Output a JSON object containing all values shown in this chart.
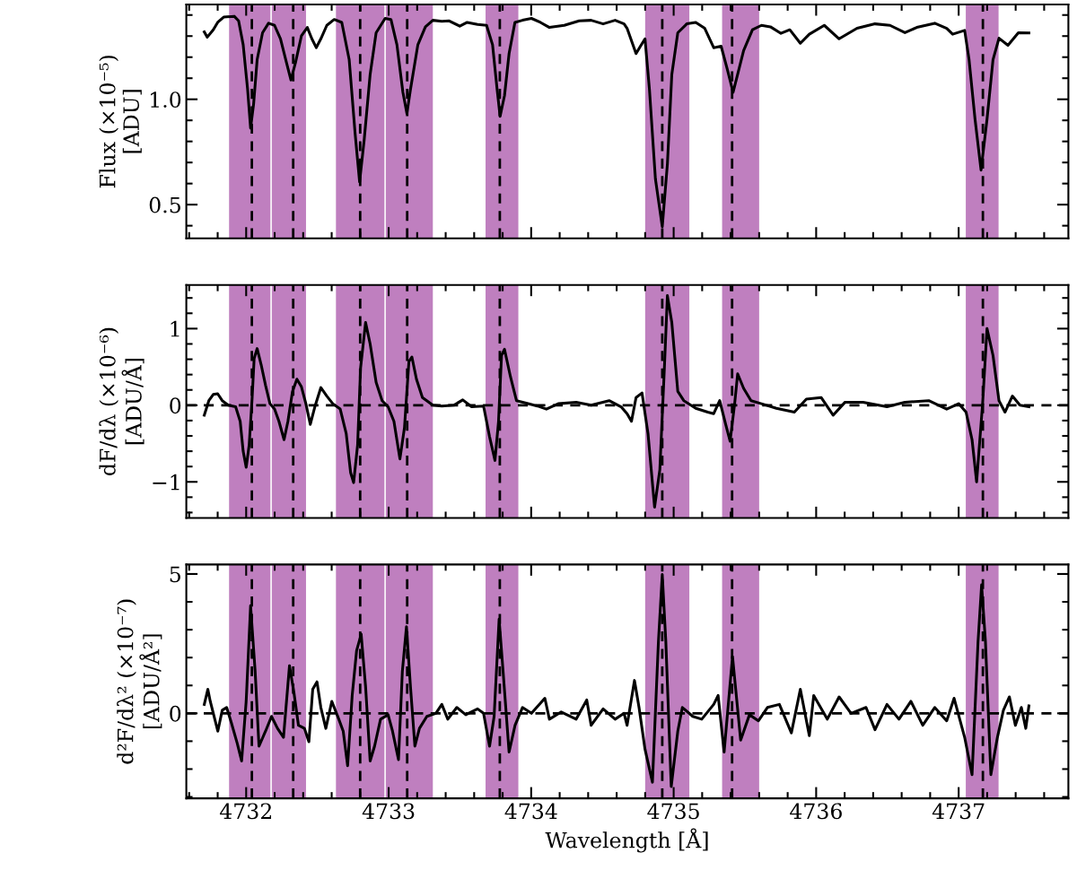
{
  "chart_data": [
    {
      "type": "line",
      "ylabel": "Flux (×10⁻⁵)\n[ADU]",
      "xlim": [
        4731.58,
        4737.77
      ],
      "xticks": [
        4732,
        4733,
        4734,
        4735,
        4736,
        4737
      ],
      "ylim": [
        0.34,
        1.45
      ],
      "yticks": [
        0.5,
        {
          "value": 1,
          "label": "1.0"
        }
      ],
      "tick_labels": "y",
      "series": [
        {
          "color": "#000000",
          "x": [
            4731.706,
            4731.727,
            4731.769,
            4731.8,
            4731.842,
            4731.916,
            4731.947,
            4731.979,
            4732.01,
            4732.031,
            4732.052,
            4732.077,
            4732.115,
            4732.157,
            4732.199,
            4732.241,
            4732.283,
            4732.314,
            4732.346,
            4732.388,
            4732.429,
            4732.461,
            4732.492,
            4732.524,
            4732.566,
            4732.618,
            4732.671,
            4732.723,
            4732.765,
            4732.796,
            4732.828,
            4732.87,
            4732.912,
            4732.975,
            4733.016,
            4733.058,
            4733.1,
            4733.128,
            4733.153,
            4733.205,
            4733.258,
            4733.31,
            4733.373,
            4733.425,
            4733.499,
            4733.551,
            4733.624,
            4733.687,
            4733.729,
            4733.761,
            4733.782,
            4733.813,
            4733.845,
            4733.886,
            4733.939,
            4734.002,
            4734.065,
            4734.128,
            4734.232,
            4734.337,
            4734.421,
            4734.505,
            4734.589,
            4734.652,
            4734.673,
            4734.736,
            4734.767,
            4734.799,
            4734.83,
            4734.872,
            4734.92,
            4734.956,
            4734.987,
            4735.029,
            4735.092,
            4735.155,
            4735.218,
            4735.281,
            4735.333,
            4735.375,
            4735.417,
            4735.449,
            4735.491,
            4735.553,
            4735.616,
            4735.679,
            4735.753,
            4735.815,
            4735.889,
            4735.952,
            4736.057,
            4736.161,
            4736.287,
            4736.413,
            4736.518,
            4736.623,
            4736.706,
            4736.832,
            4736.916,
            4736.958,
            4737.042,
            4737.073,
            4737.115,
            4737.157,
            4737.199,
            4737.241,
            4737.283,
            4737.346,
            4737.419,
            4737.493
          ],
          "values": [
            1.32,
            1.295,
            1.33,
            1.365,
            1.39,
            1.394,
            1.372,
            1.259,
            1.047,
            0.863,
            0.976,
            1.188,
            1.316,
            1.361,
            1.351,
            1.287,
            1.174,
            1.092,
            1.174,
            1.302,
            1.341,
            1.287,
            1.245,
            1.287,
            1.351,
            1.379,
            1.365,
            1.188,
            0.834,
            0.608,
            0.806,
            1.118,
            1.316,
            1.384,
            1.379,
            1.259,
            1.033,
            0.933,
            1.047,
            1.259,
            1.344,
            1.375,
            1.37,
            1.372,
            1.347,
            1.365,
            1.355,
            1.351,
            1.259,
            1.047,
            0.919,
            1.018,
            1.217,
            1.365,
            1.375,
            1.384,
            1.365,
            1.341,
            1.351,
            1.372,
            1.375,
            1.358,
            1.375,
            1.358,
            1.337,
            1.217,
            1.252,
            1.287,
            1.047,
            0.622,
            0.395,
            0.693,
            1.118,
            1.316,
            1.358,
            1.365,
            1.337,
            1.245,
            1.252,
            1.146,
            1.033,
            1.118,
            1.231,
            1.33,
            1.351,
            1.344,
            1.313,
            1.33,
            1.266,
            1.309,
            1.351,
            1.287,
            1.337,
            1.358,
            1.351,
            1.316,
            1.341,
            1.361,
            1.337,
            1.309,
            1.327,
            1.188,
            0.905,
            0.664,
            0.905,
            1.188,
            1.29,
            1.256,
            1.316,
            1.315
          ]
        }
      ],
      "bands": [
        {
          "axis": "x",
          "from": 4731.88,
          "to": 4732.17,
          "color": "#bf7fbf"
        },
        {
          "axis": "x",
          "from": 4732.18,
          "to": 4732.42,
          "color": "#bf7fbf"
        },
        {
          "axis": "x",
          "from": 4732.63,
          "to": 4732.97,
          "color": "#bf7fbf"
        },
        {
          "axis": "x",
          "from": 4732.98,
          "to": 4733.31,
          "color": "#bf7fbf"
        },
        {
          "axis": "x",
          "from": 4733.68,
          "to": 4733.91,
          "color": "#bf7fbf"
        },
        {
          "axis": "x",
          "from": 4734.8,
          "to": 4735.11,
          "color": "#bf7fbf"
        },
        {
          "axis": "x",
          "from": 4735.34,
          "to": 4735.6,
          "color": "#bf7fbf"
        },
        {
          "axis": "x",
          "from": 4737.05,
          "to": 4737.28,
          "color": "#bf7fbf"
        }
      ],
      "ref_lines": [
        {
          "axis": "x",
          "value": 4732.04,
          "line_style": "dashed",
          "color": "#000000"
        },
        {
          "axis": "x",
          "value": 4732.33,
          "line_style": "dashed",
          "color": "#000000"
        },
        {
          "axis": "x",
          "value": 4732.8,
          "line_style": "dashed",
          "color": "#000000"
        },
        {
          "axis": "x",
          "value": 4733.13,
          "line_style": "dashed",
          "color": "#000000"
        },
        {
          "axis": "x",
          "value": 4733.78,
          "line_style": "dashed",
          "color": "#000000"
        },
        {
          "axis": "x",
          "value": 4734.92,
          "line_style": "dashed",
          "color": "#000000"
        },
        {
          "axis": "x",
          "value": 4735.41,
          "line_style": "dashed",
          "color": "#000000"
        },
        {
          "axis": "x",
          "value": 4737.17,
          "line_style": "dashed",
          "color": "#000000"
        }
      ]
    },
    {
      "type": "line",
      "ylabel": "dF/dλ (×10⁻⁶)\n[ADU/Å]",
      "xlim": [
        4731.58,
        4737.77
      ],
      "xticks": [
        4732,
        4733,
        4734,
        4735,
        4736,
        4737
      ],
      "ylim": [
        -1.47,
        1.57
      ],
      "yticks": [
        {
          "value": -1,
          "label": "−1"
        },
        0,
        1
      ],
      "tick_labels": "y",
      "series": [
        {
          "color": "#000000",
          "x": [
            4731.706,
            4731.738,
            4731.769,
            4731.8,
            4731.832,
            4731.874,
            4731.926,
            4731.958,
            4731.979,
            4732.0,
            4732.021,
            4732.042,
            4732.056,
            4732.077,
            4732.105,
            4732.136,
            4732.167,
            4732.199,
            4732.23,
            4732.266,
            4732.293,
            4732.325,
            4732.356,
            4732.388,
            4732.419,
            4732.45,
            4732.482,
            4732.524,
            4732.566,
            4732.608,
            4732.66,
            4732.702,
            4732.733,
            4732.754,
            4732.782,
            4732.803,
            4732.838,
            4732.87,
            4732.912,
            4732.954,
            4732.996,
            4733.037,
            4733.079,
            4733.111,
            4733.142,
            4733.163,
            4733.195,
            4733.237,
            4733.31,
            4733.373,
            4733.457,
            4733.52,
            4733.582,
            4733.666,
            4733.708,
            4733.746,
            4733.771,
            4733.792,
            4733.813,
            4733.855,
            4733.897,
            4733.96,
            4734.044,
            4734.107,
            4734.19,
            4734.316,
            4734.421,
            4734.547,
            4734.631,
            4734.673,
            4734.704,
            4734.736,
            4734.778,
            4734.82,
            4734.866,
            4734.903,
            4734.935,
            4734.956,
            4734.987,
            4735.029,
            4735.071,
            4735.155,
            4735.239,
            4735.281,
            4735.323,
            4735.365,
            4735.396,
            4735.428,
            4735.449,
            4735.491,
            4735.543,
            4735.616,
            4735.721,
            4735.847,
            4735.931,
            4736.036,
            4736.119,
            4736.203,
            4736.329,
            4736.497,
            4736.623,
            4736.79,
            4736.916,
            4737.0,
            4737.052,
            4737.094,
            4737.126,
            4737.168,
            4737.199,
            4737.241,
            4737.283,
            4737.325,
            4737.377,
            4737.43,
            4737.493
          ],
          "values": [
            -0.13,
            0.06,
            0.14,
            0.15,
            0.06,
            0.0,
            -0.02,
            -0.21,
            -0.6,
            -0.81,
            -0.52,
            0.1,
            0.61,
            0.74,
            0.53,
            0.26,
            0.02,
            -0.05,
            -0.21,
            -0.45,
            -0.21,
            0.18,
            0.34,
            0.24,
            0.02,
            -0.25,
            -0.02,
            0.23,
            0.12,
            0.02,
            -0.05,
            -0.37,
            -0.88,
            -1.01,
            -0.52,
            0.49,
            1.08,
            0.8,
            0.3,
            0.06,
            -0.02,
            -0.21,
            -0.7,
            -0.29,
            0.57,
            0.63,
            0.34,
            0.1,
            0.0,
            -0.01,
            0.0,
            0.07,
            -0.02,
            -0.01,
            -0.41,
            -0.72,
            -0.21,
            0.65,
            0.73,
            0.37,
            0.06,
            0.03,
            -0.01,
            -0.05,
            0.02,
            0.04,
            0.0,
            0.06,
            -0.02,
            -0.11,
            -0.21,
            0.1,
            0.16,
            -0.37,
            -1.33,
            -0.84,
            0.49,
            1.43,
            1.08,
            0.18,
            0.06,
            -0.04,
            -0.09,
            -0.11,
            0.06,
            -0.25,
            -0.47,
            0.02,
            0.41,
            0.22,
            0.06,
            0.02,
            -0.04,
            -0.09,
            0.08,
            0.1,
            -0.13,
            0.04,
            0.04,
            -0.02,
            0.04,
            0.06,
            -0.05,
            0.02,
            -0.09,
            -0.45,
            -1.0,
            0.02,
            1.0,
            0.65,
            0.06,
            -0.09,
            0.12,
            0.0,
            -0.02
          ]
        }
      ],
      "bands": [
        {
          "axis": "x",
          "from": 4731.88,
          "to": 4732.17,
          "color": "#bf7fbf"
        },
        {
          "axis": "x",
          "from": 4732.18,
          "to": 4732.42,
          "color": "#bf7fbf"
        },
        {
          "axis": "x",
          "from": 4732.63,
          "to": 4732.97,
          "color": "#bf7fbf"
        },
        {
          "axis": "x",
          "from": 4732.98,
          "to": 4733.31,
          "color": "#bf7fbf"
        },
        {
          "axis": "x",
          "from": 4733.68,
          "to": 4733.91,
          "color": "#bf7fbf"
        },
        {
          "axis": "x",
          "from": 4734.8,
          "to": 4735.11,
          "color": "#bf7fbf"
        },
        {
          "axis": "x",
          "from": 4735.34,
          "to": 4735.6,
          "color": "#bf7fbf"
        },
        {
          "axis": "x",
          "from": 4737.05,
          "to": 4737.28,
          "color": "#bf7fbf"
        }
      ],
      "ref_lines": [
        {
          "axis": "y",
          "value": 0,
          "line_style": "dashed",
          "color": "#000000"
        },
        {
          "axis": "x",
          "value": 4732.04,
          "line_style": "dashed",
          "color": "#000000"
        },
        {
          "axis": "x",
          "value": 4732.33,
          "line_style": "dashed",
          "color": "#000000"
        },
        {
          "axis": "x",
          "value": 4732.8,
          "line_style": "dashed",
          "color": "#000000"
        },
        {
          "axis": "x",
          "value": 4733.13,
          "line_style": "dashed",
          "color": "#000000"
        },
        {
          "axis": "x",
          "value": 4733.78,
          "line_style": "dashed",
          "color": "#000000"
        },
        {
          "axis": "x",
          "value": 4734.92,
          "line_style": "dashed",
          "color": "#000000"
        },
        {
          "axis": "x",
          "value": 4735.41,
          "line_style": "dashed",
          "color": "#000000"
        },
        {
          "axis": "x",
          "value": 4737.17,
          "line_style": "dashed",
          "color": "#000000"
        }
      ]
    },
    {
      "type": "line",
      "ylabel": "d²F/dλ² (×10⁻⁷)\n[ADU/Å²]",
      "xlabel": "Wavelength [Å]",
      "xlim": [
        4731.58,
        4737.77
      ],
      "xticks": [
        4732,
        4733,
        4734,
        4735,
        4736,
        4737
      ],
      "ylim": [
        -3.05,
        5.34
      ],
      "yticks": [
        0,
        5
      ],
      "series": [
        {
          "color": "#000000",
          "x": [
            4731.706,
            4731.731,
            4731.748,
            4731.801,
            4731.832,
            4731.863,
            4731.895,
            4731.937,
            4731.968,
            4732.0,
            4732.031,
            4732.063,
            4732.09,
            4732.136,
            4732.178,
            4732.22,
            4732.262,
            4732.304,
            4732.335,
            4732.367,
            4732.409,
            4732.44,
            4732.467,
            4732.497,
            4732.524,
            4732.559,
            4732.601,
            4732.65,
            4732.681,
            4732.712,
            4732.744,
            4732.775,
            4732.807,
            4732.838,
            4732.87,
            4732.901,
            4732.943,
            4732.996,
            4733.027,
            4733.069,
            4733.096,
            4733.125,
            4733.153,
            4733.184,
            4733.216,
            4733.268,
            4733.331,
            4733.373,
            4733.415,
            4733.478,
            4733.541,
            4733.624,
            4733.666,
            4733.708,
            4733.74,
            4733.775,
            4733.803,
            4733.845,
            4733.887,
            4733.939,
            4734.002,
            4734.096,
            4734.128,
            4734.211,
            4734.316,
            4734.39,
            4734.421,
            4734.505,
            4734.589,
            4734.652,
            4734.673,
            4734.725,
            4734.757,
            4734.799,
            4734.851,
            4734.893,
            4734.92,
            4734.945,
            4734.983,
            4735.029,
            4735.061,
            4735.134,
            4735.197,
            4735.281,
            4735.312,
            4735.354,
            4735.413,
            4735.47,
            4735.532,
            4735.595,
            4735.658,
            4735.742,
            4735.826,
            4735.889,
            4735.952,
            4735.983,
            4736.078,
            4736.161,
            4736.245,
            4736.35,
            4736.413,
            4736.497,
            4736.581,
            4736.665,
            4736.748,
            4736.832,
            4736.916,
            4736.968,
            4737.042,
            4737.094,
            4737.136,
            4737.161,
            4737.188,
            4737.226,
            4737.272,
            4737.314,
            4737.356,
            4737.398,
            4737.44,
            4737.471,
            4737.493
          ],
          "values": [
            0.32,
            0.86,
            0.43,
            -0.64,
            0.11,
            0.21,
            -0.32,
            -1.07,
            -1.71,
            0.43,
            3.86,
            1.5,
            -1.18,
            -0.64,
            -0.11,
            -0.54,
            -0.86,
            1.71,
            0.75,
            -0.43,
            -0.54,
            -1.02,
            0.86,
            1.13,
            0.21,
            -0.54,
            0.43,
            -0.21,
            -0.64,
            -1.88,
            0.64,
            2.25,
            2.84,
            0.96,
            -1.71,
            -1.18,
            -0.21,
            -0.05,
            -0.64,
            -1.66,
            1.5,
            3.11,
            0.96,
            -1.18,
            -0.54,
            -0.11,
            0.0,
            0.32,
            -0.21,
            0.21,
            -0.05,
            0.16,
            0.0,
            -1.18,
            -0.11,
            3.38,
            1.5,
            -1.39,
            -0.43,
            0.21,
            0.0,
            0.54,
            -0.21,
            0.05,
            -0.21,
            0.48,
            -0.43,
            0.16,
            -0.21,
            0.0,
            -0.43,
            1.18,
            0.21,
            -1.29,
            -2.47,
            2.57,
            4.98,
            2.57,
            -2.63,
            -0.64,
            0.21,
            -0.11,
            -0.21,
            0.32,
            0.64,
            -1.39,
            2.04,
            -0.96,
            -0.05,
            -0.27,
            0.21,
            0.32,
            -0.7,
            0.86,
            -0.8,
            0.64,
            -0.21,
            0.59,
            0.0,
            0.21,
            -0.59,
            0.32,
            -0.21,
            0.43,
            -0.43,
            0.21,
            -0.27,
            0.54,
            -0.86,
            -2.2,
            2.57,
            4.61,
            2.57,
            -2.2,
            -0.86,
            0.11,
            0.59,
            -0.43,
            0.21,
            -0.54,
            0.27
          ]
        }
      ],
      "bands": [
        {
          "axis": "x",
          "from": 4731.88,
          "to": 4732.17,
          "color": "#bf7fbf"
        },
        {
          "axis": "x",
          "from": 4732.18,
          "to": 4732.42,
          "color": "#bf7fbf"
        },
        {
          "axis": "x",
          "from": 4732.63,
          "to": 4732.97,
          "color": "#bf7fbf"
        },
        {
          "axis": "x",
          "from": 4732.98,
          "to": 4733.31,
          "color": "#bf7fbf"
        },
        {
          "axis": "x",
          "from": 4733.68,
          "to": 4733.91,
          "color": "#bf7fbf"
        },
        {
          "axis": "x",
          "from": 4734.8,
          "to": 4735.11,
          "color": "#bf7fbf"
        },
        {
          "axis": "x",
          "from": 4735.34,
          "to": 4735.6,
          "color": "#bf7fbf"
        },
        {
          "axis": "x",
          "from": 4737.05,
          "to": 4737.28,
          "color": "#bf7fbf"
        }
      ],
      "ref_lines": [
        {
          "axis": "y",
          "value": 0,
          "line_style": "dashed",
          "color": "#000000"
        },
        {
          "axis": "x",
          "value": 4732.04,
          "line_style": "dashed",
          "color": "#000000"
        },
        {
          "axis": "x",
          "value": 4732.33,
          "line_style": "dashed",
          "color": "#000000"
        },
        {
          "axis": "x",
          "value": 4732.8,
          "line_style": "dashed",
          "color": "#000000"
        },
        {
          "axis": "x",
          "value": 4733.13,
          "line_style": "dashed",
          "color": "#000000"
        },
        {
          "axis": "x",
          "value": 4733.78,
          "line_style": "dashed",
          "color": "#000000"
        },
        {
          "axis": "x",
          "value": 4734.92,
          "line_style": "dashed",
          "color": "#000000"
        },
        {
          "axis": "x",
          "value": 4735.41,
          "line_style": "dashed",
          "color": "#000000"
        },
        {
          "axis": "x",
          "value": 4737.17,
          "line_style": "dashed",
          "color": "#000000"
        }
      ]
    }
  ]
}
